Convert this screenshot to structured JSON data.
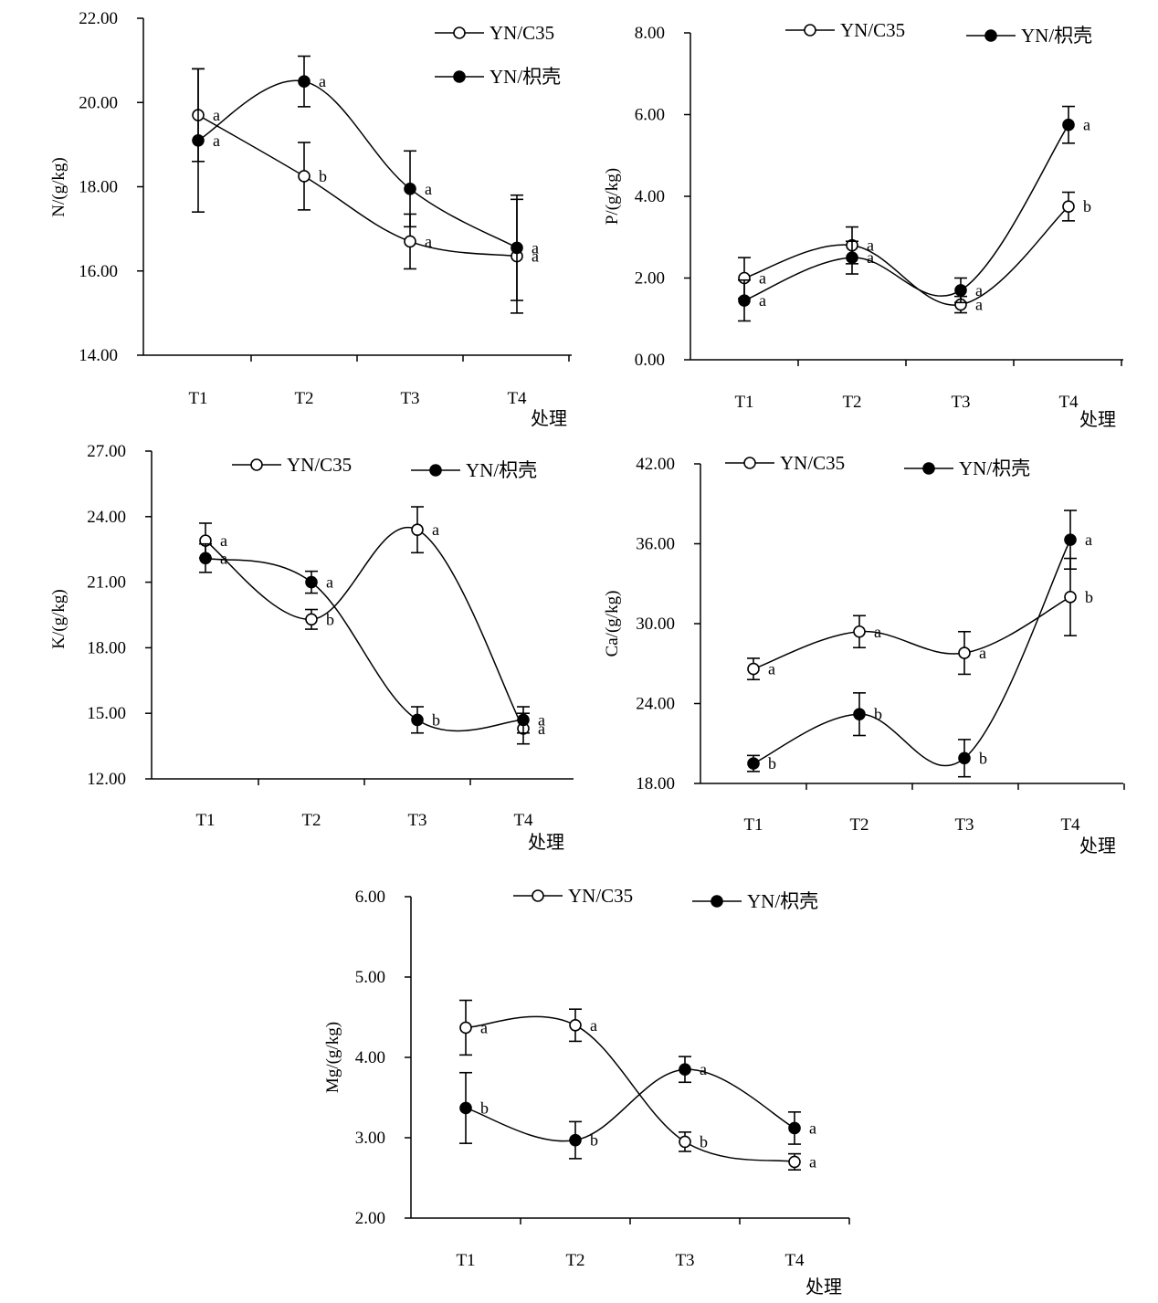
{
  "chart_data": [
    {
      "type": "line",
      "ylabel": "N/(g/kg)",
      "xlabel": "处理",
      "categories": [
        "T1",
        "T2",
        "T3",
        "T4"
      ],
      "ylim": [
        14,
        22
      ],
      "yticks": [
        "14.00",
        "16.00",
        "18.00",
        "20.00",
        "22.00"
      ],
      "legend": "top-right",
      "series": [
        {
          "name": "YN/C35",
          "marker": "open",
          "values": [
            19.7,
            18.25,
            16.7,
            16.35
          ],
          "errors": [
            1.1,
            0.8,
            0.65,
            1.35
          ],
          "labels": [
            "a",
            "b",
            "a",
            "a"
          ]
        },
        {
          "name": "YN/枳壳",
          "marker": "filled",
          "values": [
            19.1,
            20.5,
            17.95,
            16.55
          ],
          "errors": [
            1.7,
            0.6,
            0.9,
            1.25
          ],
          "labels": [
            "a",
            "a",
            "a",
            "a"
          ]
        }
      ]
    },
    {
      "type": "line",
      "ylabel": "P/(g/kg)",
      "xlabel": "处理",
      "categories": [
        "T1",
        "T2",
        "T3",
        "T4"
      ],
      "ylim": [
        0,
        8
      ],
      "yticks": [
        "0.00",
        "2.00",
        "4.00",
        "6.00",
        "8.00"
      ],
      "legend": "top",
      "series": [
        {
          "name": "YN/C35",
          "marker": "open",
          "values": [
            2.0,
            2.8,
            1.35,
            3.75
          ],
          "errors": [
            0.5,
            0.45,
            0.2,
            0.35
          ],
          "labels": [
            "a",
            "a",
            "a",
            "b"
          ]
        },
        {
          "name": "YN/枳壳",
          "marker": "filled",
          "values": [
            1.45,
            2.5,
            1.7,
            5.75
          ],
          "errors": [
            0.5,
            0.4,
            0.3,
            0.45
          ],
          "labels": [
            "a",
            "a",
            "a",
            "a"
          ]
        }
      ]
    },
    {
      "type": "line",
      "ylabel": "K/(g/kg)",
      "xlabel": "处理",
      "categories": [
        "T1",
        "T2",
        "T3",
        "T4"
      ],
      "ylim": [
        12,
        27
      ],
      "yticks": [
        "12.00",
        "15.00",
        "18.00",
        "21.00",
        "24.00",
        "27.00"
      ],
      "legend": "top",
      "series": [
        {
          "name": "YN/C35",
          "marker": "open",
          "values": [
            22.9,
            19.3,
            23.4,
            14.3
          ],
          "errors": [
            0.8,
            0.45,
            1.05,
            0.7
          ],
          "labels": [
            "a",
            "b",
            "a",
            "a"
          ]
        },
        {
          "name": "YN/枳壳",
          "marker": "filled",
          "values": [
            22.1,
            21.0,
            14.7,
            14.7
          ],
          "errors": [
            0.65,
            0.5,
            0.6,
            0.6
          ],
          "labels": [
            "a",
            "a",
            "b",
            "a"
          ]
        }
      ]
    },
    {
      "type": "line",
      "ylabel": "Ca/(g/kg)",
      "xlabel": "处理",
      "categories": [
        "T1",
        "T2",
        "T3",
        "T4"
      ],
      "ylim": [
        18,
        42
      ],
      "yticks": [
        "18.00",
        "24.00",
        "30.00",
        "36.00",
        "42.00"
      ],
      "legend": "top",
      "series": [
        {
          "name": "YN/C35",
          "marker": "open",
          "values": [
            26.6,
            29.4,
            27.8,
            32.0
          ],
          "errors": [
            0.8,
            1.2,
            1.6,
            2.9
          ],
          "labels": [
            "a",
            "a",
            "a",
            "b"
          ]
        },
        {
          "name": "YN/枳壳",
          "marker": "filled",
          "values": [
            19.5,
            23.2,
            19.9,
            36.3
          ],
          "errors": [
            0.6,
            1.6,
            1.4,
            2.2
          ],
          "labels": [
            "b",
            "b",
            "b",
            "a"
          ]
        }
      ]
    },
    {
      "type": "line",
      "ylabel": "Mg/(g/kg)",
      "xlabel": "处理",
      "categories": [
        "T1",
        "T2",
        "T3",
        "T4"
      ],
      "ylim": [
        2,
        6
      ],
      "yticks": [
        "2.00",
        "3.00",
        "4.00",
        "5.00",
        "6.00"
      ],
      "legend": "top",
      "series": [
        {
          "name": "YN/C35",
          "marker": "open",
          "values": [
            4.37,
            4.4,
            2.95,
            2.7
          ],
          "errors": [
            0.34,
            0.2,
            0.12,
            0.1
          ],
          "labels": [
            "a",
            "a",
            "b",
            "a"
          ]
        },
        {
          "name": "YN/枳壳",
          "marker": "filled",
          "values": [
            3.37,
            2.97,
            3.85,
            3.12
          ],
          "errors": [
            0.44,
            0.23,
            0.16,
            0.2
          ],
          "labels": [
            "b",
            "b",
            "a",
            "a"
          ]
        }
      ]
    }
  ]
}
